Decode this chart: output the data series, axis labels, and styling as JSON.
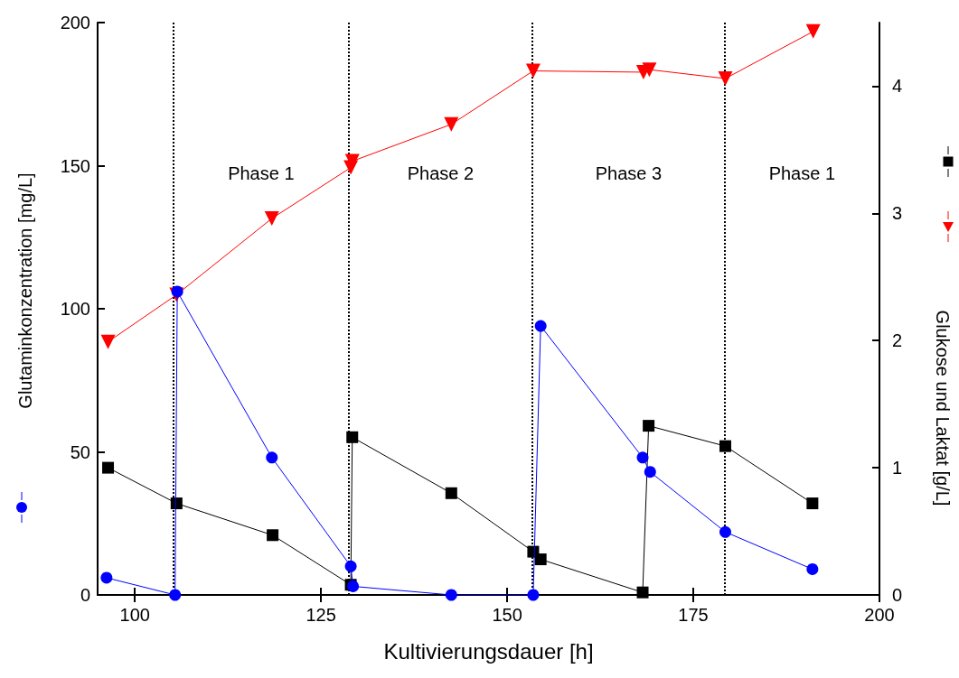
{
  "chart_data": {
    "type": "line",
    "xlabel": "Kultivierungsdauer [h]",
    "ylabel": "Glutaminkonzentration [mg/L]",
    "y2label": "Glukose und Laktat [g/L]",
    "xlim": [
      95,
      200
    ],
    "xticks": [
      100,
      125,
      150,
      175,
      200
    ],
    "ylim": [
      0,
      200
    ],
    "yticks": [
      0,
      50,
      100,
      150,
      200
    ],
    "y2lim": [
      0,
      4.5
    ],
    "y2ticks": [
      0,
      1,
      2,
      3,
      4
    ],
    "grid": false,
    "series": [
      {
        "color": "#0000ff",
        "marker": "circle",
        "x": [
          96.2,
          105.4,
          105.7,
          118.4,
          129.0,
          129.3,
          142.5,
          153.5,
          154.5,
          168.2,
          169.2,
          179.3,
          191.0
        ],
        "values": [
          6,
          0,
          106,
          48,
          10,
          3,
          0,
          0,
          94,
          48,
          43,
          22,
          9
        ]
      },
      {
        "color": "#000000",
        "marker": "square",
        "axis": "y2",
        "x": [
          96.4,
          105.6,
          118.5,
          129.0,
          129.2,
          142.5,
          153.5,
          154.5,
          168.2,
          169.0,
          179.3,
          191.0
        ],
        "values": [
          1.0,
          0.72,
          0.47,
          0.08,
          1.24,
          0.8,
          0.34,
          0.28,
          0.02,
          1.33,
          1.17,
          0.72
        ]
      },
      {
        "color": "#ff0000",
        "marker": "triangle",
        "axis": "y2",
        "x": [
          96.4,
          105.6,
          118.4,
          129.0,
          129.2,
          142.5,
          153.5,
          168.3,
          169.1,
          179.3,
          191.1
        ],
        "values": [
          1.99,
          2.36,
          2.96,
          3.36,
          3.41,
          3.7,
          4.12,
          4.11,
          4.13,
          4.06,
          4.43
        ]
      }
    ],
    "ref_lines": [
      {
        "axis": "x",
        "value": 105.2,
        "color": "#000000",
        "line_style": "dotted"
      },
      {
        "axis": "x",
        "value": 128.7,
        "color": "#000000",
        "line_style": "dotted"
      },
      {
        "axis": "x",
        "value": 153.4,
        "color": "#000000",
        "line_style": "dotted"
      },
      {
        "axis": "x",
        "value": 179.2,
        "color": "#000000",
        "line_style": "dotted"
      }
    ],
    "annotations": [
      "Phase 1",
      "Phase 2",
      "Phase 3",
      "Phase 1"
    ]
  }
}
